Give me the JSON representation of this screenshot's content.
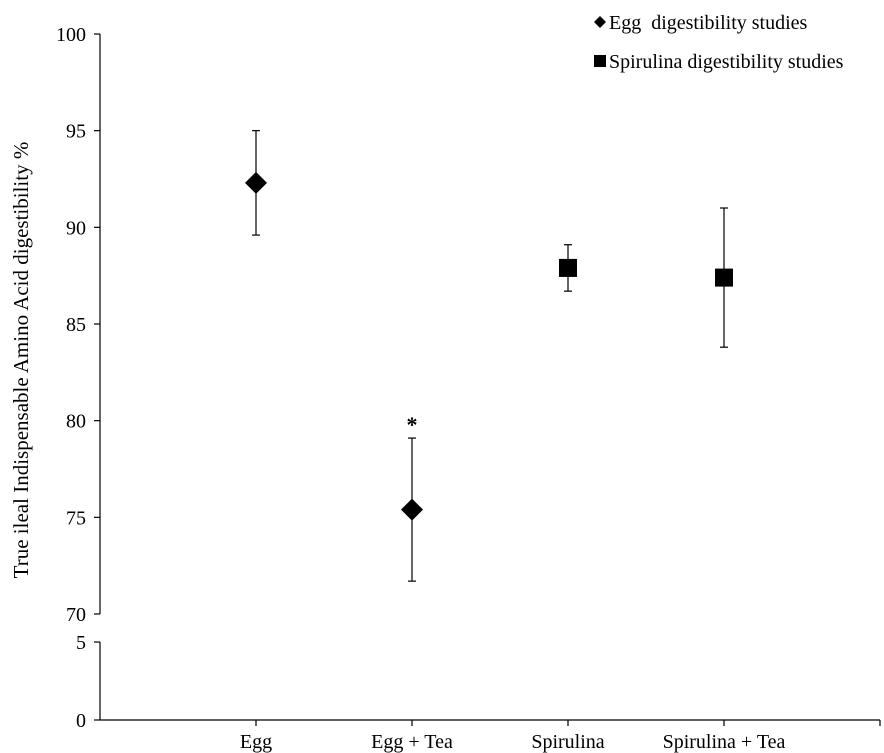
{
  "chart_data": {
    "type": "scatter",
    "title": "",
    "xlabel": "",
    "ylabel": "True ileal Indispensable Amino Acid digestibility %",
    "categories": [
      "Egg",
      "Egg + Tea",
      "Spirulina",
      "Spirulina + Tea"
    ],
    "yaxis": {
      "broken": true,
      "lower_segment": [
        0,
        5
      ],
      "upper_segment": [
        70,
        100
      ],
      "ticks": [
        0,
        5,
        70,
        75,
        80,
        85,
        90,
        95,
        100
      ]
    },
    "grid": false,
    "legend_position": "top-right",
    "series": [
      {
        "name": "Egg  digestibility studies",
        "marker": "diamond",
        "color": "#000000",
        "points": [
          {
            "category": "Egg",
            "y": 92.3,
            "err_low": 89.6,
            "err_high": 95.0
          },
          {
            "category": "Egg + Tea",
            "y": 75.4,
            "err_low": 71.7,
            "err_high": 79.1,
            "annotation": "*"
          }
        ]
      },
      {
        "name": "Spirulina digestibility studies",
        "marker": "square",
        "color": "#000000",
        "points": [
          {
            "category": "Spirulina",
            "y": 87.9,
            "err_low": 86.7,
            "err_high": 89.1
          },
          {
            "category": "Spirulina + Tea",
            "y": 87.4,
            "err_low": 83.8,
            "err_high": 91.0
          }
        ]
      }
    ]
  }
}
